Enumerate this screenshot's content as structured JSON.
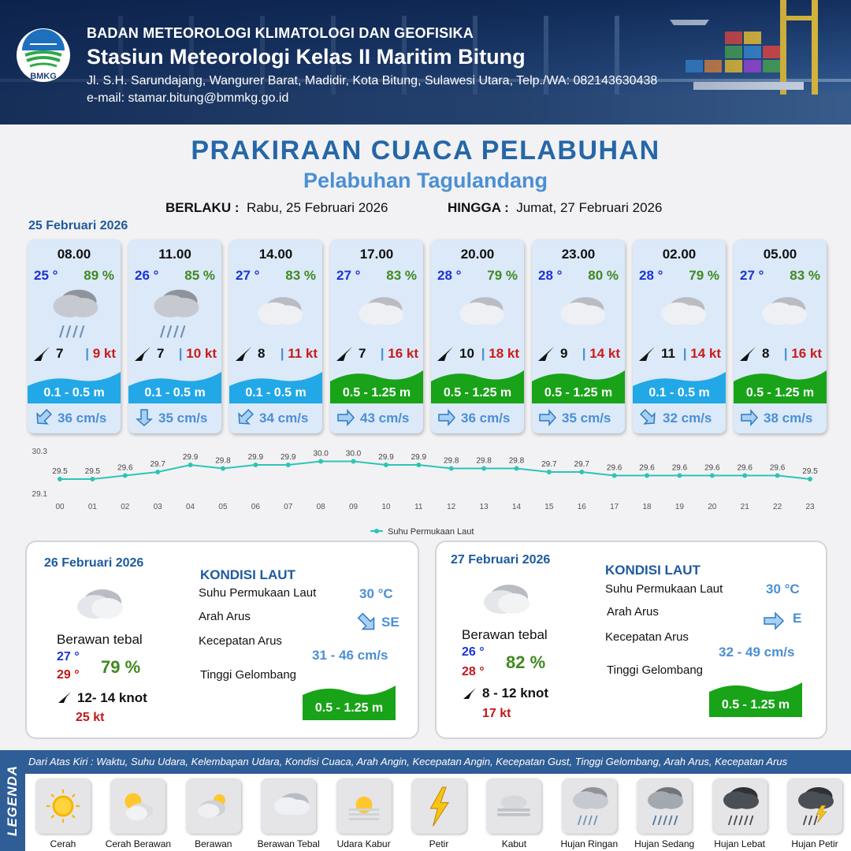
{
  "header": {
    "logo_text": "BMKG",
    "org": "BADAN METEOROLOGI KLIMATOLOGI DAN GEOFISIKA",
    "station": "Stasiun Meteorologi Kelas II Maritim Bitung",
    "address": "Jl. S.H. Sarundajang, Wangurer Barat, Madidir, Kota Bitung, Sulawesi Utara, Telp./WA: 082143630438",
    "email": "e-mail: stamar.bitung@bmmkg.go.id"
  },
  "title": "PRAKIRAAN CUACA PELABUHAN",
  "subtitle": "Pelabuhan Tagulandang",
  "validity": {
    "berlaku_label": "BERLAKU :",
    "berlaku_value": "Rabu, 25 Februari 2026",
    "hingga_label": "HINGGA :",
    "hingga_value": "Jumat, 27 Februari 2026"
  },
  "day1_date": "25 Februari 2026",
  "hourly": [
    {
      "time": "08.00",
      "temp": "25 °",
      "hum": "89 %",
      "icon": "light-rain-icon",
      "wind_dir": "NE",
      "wind": "7",
      "gust": "9 kt",
      "wave": "0.1 - 0.5 m",
      "wave_level": "low",
      "current_dir": "SW",
      "current": "36 cm/s"
    },
    {
      "time": "11.00",
      "temp": "26 °",
      "hum": "85 %",
      "icon": "light-rain-icon",
      "wind_dir": "NE",
      "wind": "7",
      "gust": "10 kt",
      "wave": "0.1 - 0.5 m",
      "wave_level": "low",
      "current_dir": "S",
      "current": "35 cm/s"
    },
    {
      "time": "14.00",
      "temp": "27 °",
      "hum": "83 %",
      "icon": "overcast-icon",
      "wind_dir": "NE",
      "wind": "8",
      "gust": "11 kt",
      "wave": "0.1 - 0.5 m",
      "wave_level": "low",
      "current_dir": "SW",
      "current": "34 cm/s"
    },
    {
      "time": "17.00",
      "temp": "27 °",
      "hum": "83 %",
      "icon": "overcast-icon",
      "wind_dir": "NE",
      "wind": "7",
      "gust": "16 kt",
      "wave": "0.5 - 1.25 m",
      "wave_level": "mid",
      "current_dir": "E",
      "current": "43 cm/s"
    },
    {
      "time": "20.00",
      "temp": "28 °",
      "hum": "79 %",
      "icon": "overcast-icon",
      "wind_dir": "NE",
      "wind": "10",
      "gust": "18 kt",
      "wave": "0.5 - 1.25 m",
      "wave_level": "mid",
      "current_dir": "E",
      "current": "36 cm/s"
    },
    {
      "time": "23.00",
      "temp": "28 °",
      "hum": "80 %",
      "icon": "overcast-icon",
      "wind_dir": "NE",
      "wind": "9",
      "gust": "14 kt",
      "wave": "0.5 - 1.25 m",
      "wave_level": "mid",
      "current_dir": "E",
      "current": "35 cm/s"
    },
    {
      "time": "02.00",
      "temp": "28 °",
      "hum": "79 %",
      "icon": "overcast-icon",
      "wind_dir": "NE",
      "wind": "11",
      "gust": "14 kt",
      "wave": "0.1 - 0.5 m",
      "wave_level": "low",
      "current_dir": "SE",
      "current": "32 cm/s"
    },
    {
      "time": "05.00",
      "temp": "27 °",
      "hum": "83 %",
      "icon": "overcast-icon",
      "wind_dir": "NE",
      "wind": "8",
      "gust": "16 kt",
      "wave": "0.5 - 1.25 m",
      "wave_level": "mid",
      "current_dir": "E",
      "current": "38 cm/s"
    }
  ],
  "chart_data": {
    "type": "line",
    "title": "",
    "xlabel": "",
    "ylabel": "",
    "ylim": [
      29.1,
      30.3
    ],
    "y_ticks": [
      "30.3",
      "29.1"
    ],
    "categories": [
      "00",
      "01",
      "02",
      "03",
      "04",
      "05",
      "06",
      "07",
      "08",
      "09",
      "10",
      "11",
      "12",
      "13",
      "14",
      "15",
      "16",
      "17",
      "18",
      "19",
      "20",
      "21",
      "22",
      "23"
    ],
    "series": [
      {
        "name": "Suhu Permukaan Laut",
        "color": "#2ec4b6",
        "values": [
          29.5,
          29.5,
          29.6,
          29.7,
          29.9,
          29.8,
          29.9,
          29.9,
          30.0,
          30.0,
          29.9,
          29.9,
          29.8,
          29.8,
          29.8,
          29.7,
          29.7,
          29.6,
          29.6,
          29.6,
          29.6,
          29.6,
          29.6,
          29.5
        ]
      }
    ],
    "grid": false,
    "legend": "bottom-center"
  },
  "days": [
    {
      "date": "26 Februari 2026",
      "icon": "overcast-icon",
      "condition": "Berawan tebal",
      "tmin": "27 °",
      "tmax": "29 °",
      "hum": "79 %",
      "wind": "12- 14 knot",
      "gust": "25 kt",
      "kondisi_title": "KONDISI LAUT",
      "sst_label": "Suhu Permukaan Laut",
      "sst": "30 °C",
      "arus_label": "Arah Arus",
      "arus_dir": "SE",
      "kec_label": "Kecepatan Arus",
      "kec": "31 - 46 cm/s",
      "gel_label": "Tinggi Gelombang",
      "wave": "0.5 - 1.25 m"
    },
    {
      "date": "27 Februari 2026",
      "icon": "overcast-icon",
      "condition": "Berawan tebal",
      "tmin": "26 °",
      "tmax": "28 °",
      "hum": "82 %",
      "wind": "8 - 12 knot",
      "gust": "17 kt",
      "kondisi_title": "KONDISI LAUT",
      "sst_label": "Suhu Permukaan Laut",
      "sst": "30 °C",
      "arus_label": "Arah Arus",
      "arus_dir": "E",
      "kec_label": "Kecepatan Arus",
      "kec": "32 - 49 cm/s",
      "gel_label": "Tinggi Gelombang",
      "wave": "0.5 - 1.25 m"
    }
  ],
  "legend": {
    "side_title": "LEGENDA",
    "description": "Dari Atas Kiri : Waktu, Suhu Udara, Kelembapan Udara, Kondisi Cuaca, Arah Angin, Kecepatan Angin, Kecepatan Gust, Tinggi Gelombang, Arah Arus, Kecepatan Arus",
    "items": [
      {
        "label": "Cerah",
        "icon": "sun-icon"
      },
      {
        "label": "Cerah Berawan",
        "icon": "sun-cloud-icon"
      },
      {
        "label": "Berawan",
        "icon": "cloud-sun-icon"
      },
      {
        "label": "Berawan Tebal",
        "icon": "overcast-icon"
      },
      {
        "label": "Udara Kabur",
        "icon": "haze-icon"
      },
      {
        "label": "Petir",
        "icon": "lightning-icon"
      },
      {
        "label": "Kabut",
        "icon": "fog-icon"
      },
      {
        "label": "Hujan Ringan",
        "icon": "light-rain-icon"
      },
      {
        "label": "Hujan Sedang",
        "icon": "moderate-rain-icon"
      },
      {
        "label": "Hujan Lebat",
        "icon": "heavy-rain-icon"
      },
      {
        "label": "Hujan Petir",
        "icon": "thunderstorm-icon"
      }
    ]
  },
  "colors": {
    "wave_low": "#22a8e6",
    "wave_mid": "#19a319",
    "title_blue": "#2567a8",
    "gust_red": "#cc1a1a",
    "humidity_green": "#3f8a1f",
    "temp_blue": "#1b33d6"
  }
}
